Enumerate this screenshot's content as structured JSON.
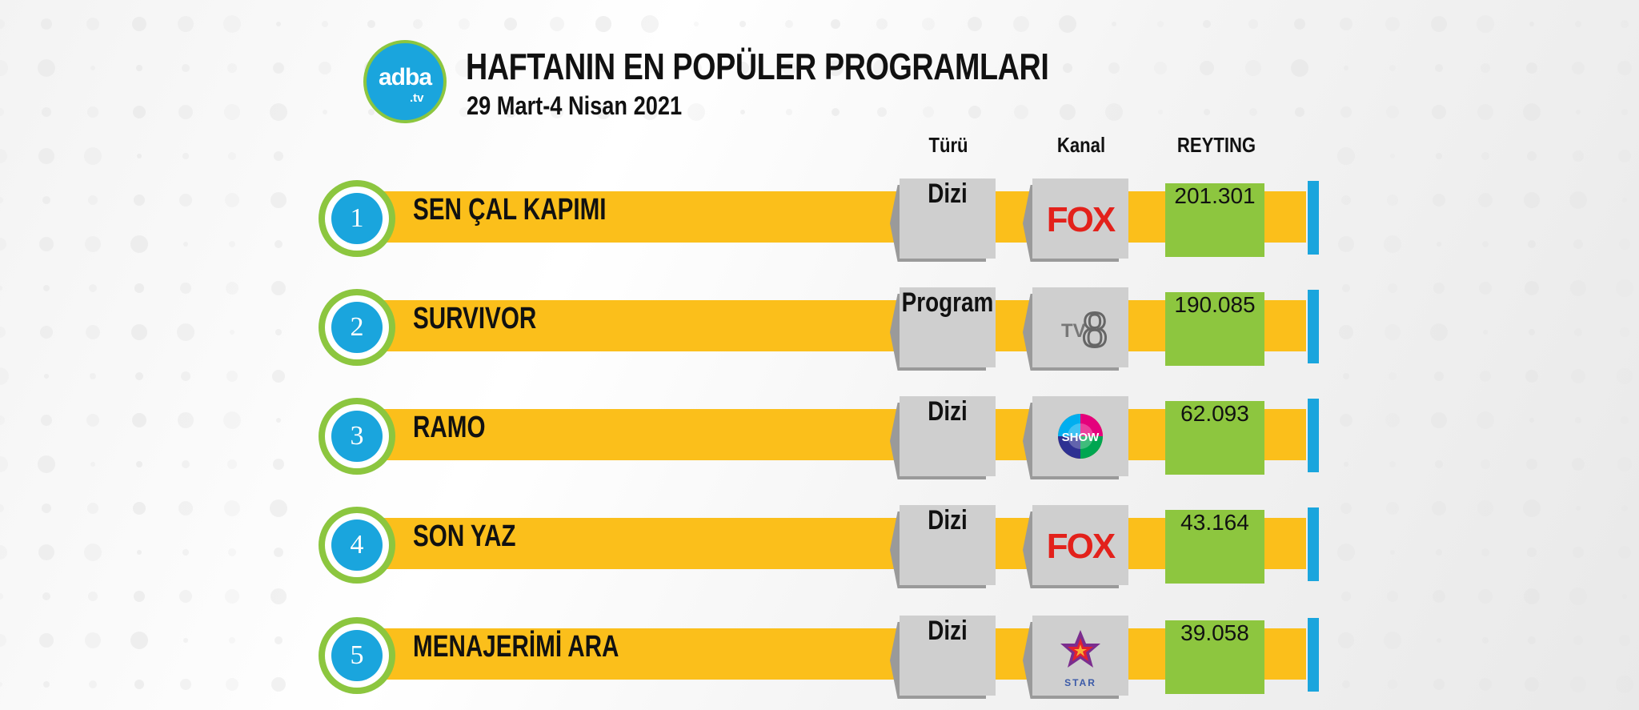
{
  "logo": {
    "main": "adba",
    "suffix": ".tv"
  },
  "header": {
    "title": "HAFTANIN EN POPÜLER PROGRAMLARI",
    "subtitle": "29 Mart-4 Nisan 2021"
  },
  "columns": {
    "type": "Türü",
    "channel": "Kanal",
    "rating": "REYTING"
  },
  "colors": {
    "bar": "#fbbf1b",
    "rank": "#1aa5dd",
    "ring": "#8cc63f",
    "rating_box": "#8dc63f",
    "type_box": "#cfcfcf"
  },
  "chart_data": {
    "type": "table",
    "title": "HAFTANIN EN POPÜLER PROGRAMLARI",
    "subtitle": "29 Mart-4 Nisan 2021",
    "columns": [
      "Türü",
      "Kanal",
      "REYTING"
    ],
    "rows": [
      {
        "rank": "1",
        "name": "SEN ÇAL KAPIMI",
        "type": "Dizi",
        "channel": "FOX",
        "channel_icon": "fox-logo-icon",
        "rating": "201.301",
        "value": 201301
      },
      {
        "rank": "2",
        "name": "SURVIVOR",
        "type": "Program",
        "channel": "TV8",
        "channel_icon": "tv8-logo-icon",
        "rating": "190.085",
        "value": 190085
      },
      {
        "rank": "3",
        "name": "RAMO",
        "type": "Dizi",
        "channel": "SHOW",
        "channel_icon": "show-tv-logo-icon",
        "rating": "62.093",
        "value": 62093
      },
      {
        "rank": "4",
        "name": "SON YAZ",
        "type": "Dizi",
        "channel": "FOX",
        "channel_icon": "fox-logo-icon",
        "rating": "43.164",
        "value": 43164
      },
      {
        "rank": "5",
        "name": "MENAJERİMİ ARA",
        "type": "Dizi",
        "channel": "STAR",
        "channel_icon": "star-tv-logo-icon",
        "rating": "39.058",
        "value": 39058
      }
    ]
  }
}
